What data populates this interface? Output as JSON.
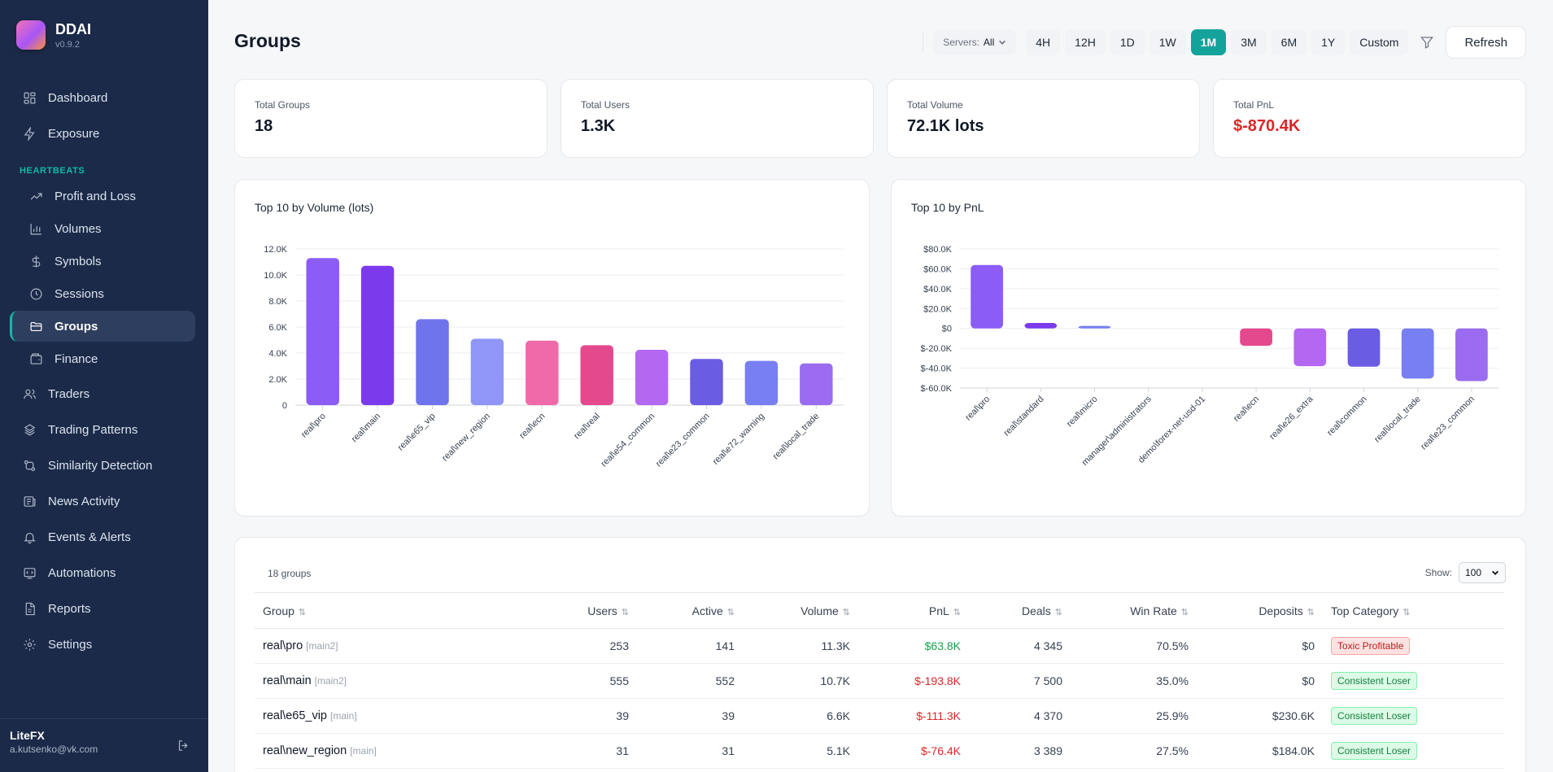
{
  "brand": {
    "name": "DDAI",
    "version": "v0.9.2"
  },
  "sidebar": {
    "top_items": [
      {
        "label": "Dashboard",
        "icon": "dashboard-icon"
      },
      {
        "label": "Exposure",
        "icon": "lightning-icon"
      }
    ],
    "section_label": "HEARTBEATS",
    "sub_items": [
      {
        "label": "Profit and Loss",
        "icon": "trending-up-icon"
      },
      {
        "label": "Volumes",
        "icon": "bar-chart-icon"
      },
      {
        "label": "Symbols",
        "icon": "dollar-icon"
      },
      {
        "label": "Sessions",
        "icon": "clock-icon"
      },
      {
        "label": "Groups",
        "icon": "folder-icon",
        "active": true
      },
      {
        "label": "Finance",
        "icon": "wallet-icon"
      }
    ],
    "bottom_items": [
      {
        "label": "Traders",
        "icon": "users-icon"
      },
      {
        "label": "Trading Patterns",
        "icon": "pattern-icon"
      },
      {
        "label": "Similarity Detection",
        "icon": "similarity-icon"
      },
      {
        "label": "News Activity",
        "icon": "news-icon"
      },
      {
        "label": "Events & Alerts",
        "icon": "bell-icon"
      },
      {
        "label": "Automations",
        "icon": "automation-icon"
      },
      {
        "label": "Reports",
        "icon": "report-icon"
      },
      {
        "label": "Settings",
        "icon": "gear-icon"
      }
    ],
    "user": {
      "name": "LiteFX",
      "email": "a.kutsenko@vk.com"
    }
  },
  "header": {
    "title": "Groups",
    "servers_label": "Servers:",
    "servers_value": "All",
    "ranges": [
      "4H",
      "12H",
      "1D",
      "1W",
      "1M",
      "3M",
      "6M",
      "1Y",
      "Custom"
    ],
    "active_range": "1M",
    "refresh_label": "Refresh"
  },
  "stats": [
    {
      "label": "Total Groups",
      "value": "18"
    },
    {
      "label": "Total Users",
      "value": "1.3K"
    },
    {
      "label": "Total Volume",
      "value": "72.1K lots"
    },
    {
      "label": "Total PnL",
      "value": "$-870.4K",
      "negative": true
    }
  ],
  "chart_data": [
    {
      "type": "bar",
      "title": "Top 10 by Volume (lots)",
      "categories": [
        "real\\pro",
        "real\\main",
        "real\\e65_vip",
        "real\\new_region",
        "real\\ecn",
        "real\\real",
        "real\\e54_common",
        "real\\e23_common",
        "real\\e72_warning",
        "real\\local_trade"
      ],
      "values": [
        11300,
        10700,
        6600,
        5100,
        4950,
        4600,
        4250,
        3550,
        3400,
        3200
      ],
      "colors": [
        "#8b5cf6",
        "#7c3aed",
        "#6f74ec",
        "#8f96f8",
        "#f06aa9",
        "#e5498d",
        "#b467f1",
        "#6a5ce3",
        "#777ff2",
        "#9b6cf0"
      ],
      "yticks": [
        "0",
        "2.0K",
        "4.0K",
        "6.0K",
        "8.0K",
        "10.0K",
        "12.0K"
      ],
      "ylim": [
        0,
        12000
      ]
    },
    {
      "type": "bar",
      "title": "Top 10 by PnL",
      "categories": [
        "real\\pro",
        "real\\standard",
        "real\\micro",
        "manager\\administrators",
        "demo\\forex-net-usd-01",
        "real\\ecn",
        "real\\e26_extra",
        "real\\common",
        "real\\local_trade",
        "real\\e23_common"
      ],
      "values": [
        63800,
        5500,
        2500,
        0,
        0,
        -17500,
        -38000,
        -38500,
        -50500,
        -53000
      ],
      "colors": [
        "#8b5cf6",
        "#7c3aed",
        "#777ff2",
        "#8b5cf6",
        "#8b5cf6",
        "#e5498d",
        "#b467f1",
        "#6a5ce3",
        "#777ff2",
        "#9b6cf0"
      ],
      "yticks": [
        "$-60.0K",
        "$-40.0K",
        "$-20.0K",
        "$0",
        "$20.0K",
        "$40.0K",
        "$60.0K",
        "$80.0K"
      ],
      "ylim": [
        -60000,
        80000
      ]
    }
  ],
  "table": {
    "count_label": "18 groups",
    "show_label": "Show:",
    "show_value": "100",
    "columns": [
      "Group",
      "Users",
      "Active",
      "Volume",
      "PnL",
      "Deals",
      "Win Rate",
      "Deposits",
      "Top Category"
    ],
    "rows": [
      {
        "group": "real\\pro",
        "server": "[main2]",
        "users": "253",
        "active": "141",
        "volume": "11.3K",
        "pnl": "$63.8K",
        "pnl_positive": true,
        "deals": "4 345",
        "win_rate": "70.5%",
        "deposits": "$0",
        "category": "Toxic Profitable",
        "category_kind": "toxic"
      },
      {
        "group": "real\\main",
        "server": "[main2]",
        "users": "555",
        "active": "552",
        "volume": "10.7K",
        "pnl": "$-193.8K",
        "pnl_positive": false,
        "deals": "7 500",
        "win_rate": "35.0%",
        "deposits": "$0",
        "category": "Consistent Loser",
        "category_kind": "loser"
      },
      {
        "group": "real\\e65_vip",
        "server": "[main]",
        "users": "39",
        "active": "39",
        "volume": "6.6K",
        "pnl": "$-111.3K",
        "pnl_positive": false,
        "deals": "4 370",
        "win_rate": "25.9%",
        "deposits": "$230.6K",
        "category": "Consistent Loser",
        "category_kind": "loser"
      },
      {
        "group": "real\\new_region",
        "server": "[main]",
        "users": "31",
        "active": "31",
        "volume": "5.1K",
        "pnl": "$-76.4K",
        "pnl_positive": false,
        "deals": "3 389",
        "win_rate": "27.5%",
        "deposits": "$184.0K",
        "category": "Consistent Loser",
        "category_kind": "loser"
      }
    ]
  }
}
